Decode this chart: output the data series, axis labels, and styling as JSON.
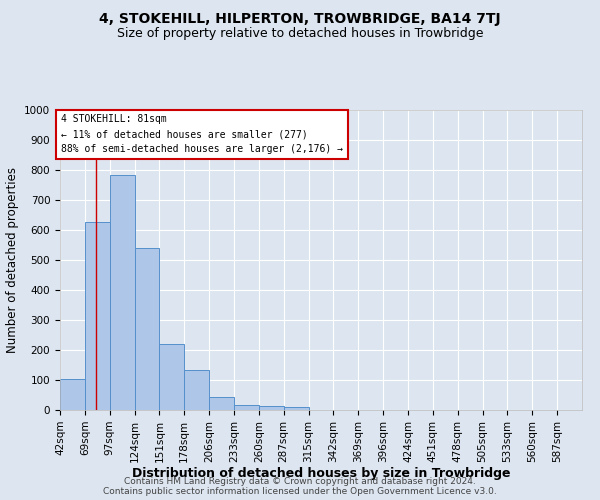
{
  "title": "4, STOKEHILL, HILPERTON, TROWBRIDGE, BA14 7TJ",
  "subtitle": "Size of property relative to detached houses in Trowbridge",
  "xlabel": "Distribution of detached houses by size in Trowbridge",
  "ylabel": "Number of detached properties",
  "bar_labels": [
    "42sqm",
    "69sqm",
    "97sqm",
    "124sqm",
    "151sqm",
    "178sqm",
    "206sqm",
    "233sqm",
    "260sqm",
    "287sqm",
    "315sqm",
    "342sqm",
    "369sqm",
    "396sqm",
    "424sqm",
    "451sqm",
    "478sqm",
    "505sqm",
    "533sqm",
    "560sqm",
    "587sqm"
  ],
  "bar_values": [
    103,
    627,
    785,
    540,
    220,
    133,
    43,
    18,
    13,
    10,
    0,
    0,
    0,
    0,
    0,
    0,
    0,
    0,
    0,
    0,
    0
  ],
  "bar_color": "#aec6e8",
  "bar_edgecolor": "#5590cc",
  "annotation_text_line1": "4 STOKEHILL: 81sqm",
  "annotation_text_line2": "← 11% of detached houses are smaller (277)",
  "annotation_text_line3": "88% of semi-detached houses are larger (2,176) →",
  "annotation_box_color": "#ffffff",
  "annotation_box_edgecolor": "#cc0000",
  "ylim": [
    0,
    1000
  ],
  "bin_width": 27,
  "footer_line1": "Contains HM Land Registry data © Crown copyright and database right 2024.",
  "footer_line2": "Contains public sector information licensed under the Open Government Licence v3.0.",
  "background_color": "#dde5f0",
  "plot_background": "#dde5f0",
  "grid_color": "#ffffff",
  "title_fontsize": 10,
  "subtitle_fontsize": 9,
  "axis_label_fontsize": 8.5,
  "tick_fontsize": 7.5,
  "footer_fontsize": 6.5
}
